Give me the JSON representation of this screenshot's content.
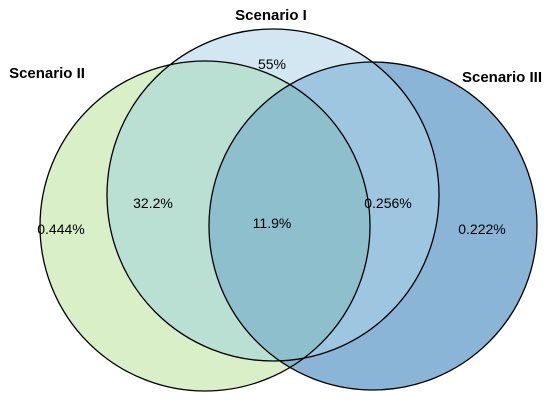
{
  "sets": [
    {
      "id": "I",
      "label": "Scenario I",
      "color": "#d2e7f1"
    },
    {
      "id": "II",
      "label": "Scenario II",
      "color": "#d8efc7"
    },
    {
      "id": "III",
      "label": "Scenario III",
      "color": "#8ab5d6"
    }
  ],
  "regions": {
    "only_I": "55%",
    "only_II": "0.444%",
    "only_III": "0.222%",
    "I_II": "32.2%",
    "I_III": "0.256%",
    "II_III": "",
    "I_II_III": "11.9%"
  },
  "colors": {
    "I_II": "#badfd3",
    "I_III": "#9ec6e0",
    "II_III": "#84b4c8",
    "I_II_III": "#8ebfcc",
    "outline": "#000000"
  }
}
